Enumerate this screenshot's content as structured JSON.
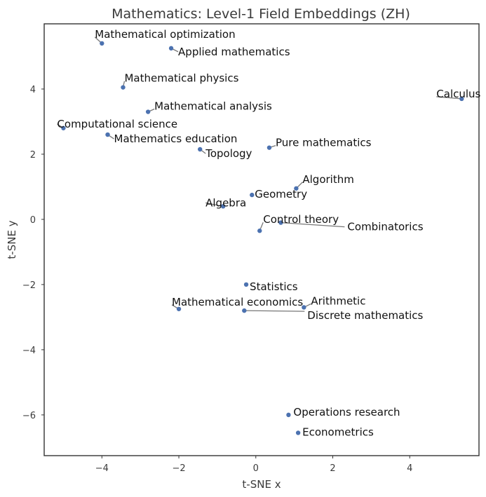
{
  "chart_data": {
    "type": "scatter",
    "title": "Mathematics: Level-1 Field Embeddings (ZH)",
    "xlabel": "t-SNE x",
    "ylabel": "t-SNE y",
    "xlim": [
      -5.5,
      5.8
    ],
    "ylim": [
      -7.25,
      6.0
    ],
    "xticks": [
      -4,
      -2,
      0,
      2,
      4
    ],
    "yticks": [
      -6,
      -4,
      -2,
      0,
      2,
      4
    ],
    "grid": false,
    "legend": "none",
    "marker_color": "#4c72b0",
    "points": [
      {
        "label": "Mathematical optimization",
        "x": -4.0,
        "y": 5.4
      },
      {
        "label": "Applied mathematics",
        "x": -2.2,
        "y": 5.25
      },
      {
        "label": "Mathematical physics",
        "x": -3.45,
        "y": 4.05
      },
      {
        "label": "Calculus",
        "x": 5.35,
        "y": 3.7
      },
      {
        "label": "Mathematical analysis",
        "x": -2.8,
        "y": 3.3
      },
      {
        "label": "Computational science",
        "x": -5.0,
        "y": 2.8
      },
      {
        "label": "Mathematics education",
        "x": -3.85,
        "y": 2.6
      },
      {
        "label": "Pure mathematics",
        "x": 0.35,
        "y": 2.2
      },
      {
        "label": "Topology",
        "x": -1.45,
        "y": 2.15
      },
      {
        "label": "Algorithm",
        "x": 1.05,
        "y": 0.95
      },
      {
        "label": "Geometry",
        "x": -0.1,
        "y": 0.75
      },
      {
        "label": "Algebra",
        "x": -0.85,
        "y": 0.4
      },
      {
        "label": "Control theory",
        "x": 0.1,
        "y": -0.35
      },
      {
        "label": "Combinatorics",
        "x": 0.65,
        "y": -0.1
      },
      {
        "label": "Statistics",
        "x": -0.25,
        "y": -2.0
      },
      {
        "label": "Arithmetic",
        "x": 1.25,
        "y": -2.7
      },
      {
        "label": "Mathematical economics",
        "x": -2.0,
        "y": -2.75
      },
      {
        "label": "Discrete mathematics",
        "x": -0.3,
        "y": -2.8
      },
      {
        "label": "Operations research",
        "x": 0.85,
        "y": -6.0
      },
      {
        "label": "Econometrics",
        "x": 1.1,
        "y": -6.55
      }
    ]
  }
}
